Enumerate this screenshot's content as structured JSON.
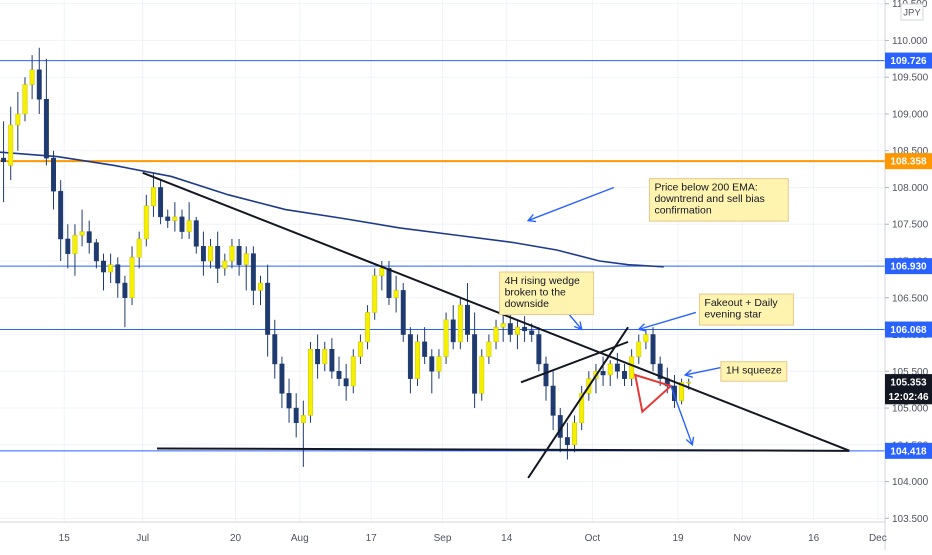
{
  "chart_data": {
    "type": "candlestick",
    "instrument_unit_label": "JPY",
    "y_axis": {
      "range": [
        103.45,
        110.55
      ],
      "ticks": [
        "103.500",
        "104.000",
        "104.500",
        "105.000",
        "105.500",
        "106.000",
        "106.500",
        "107.000",
        "107.500",
        "108.000",
        "108.500",
        "109.000",
        "109.500",
        "110.000",
        "110.500"
      ],
      "tick_values": [
        103.5,
        104.0,
        104.5,
        105.0,
        105.5,
        106.0,
        106.5,
        107.0,
        107.5,
        108.0,
        108.5,
        109.0,
        109.5,
        110.0,
        110.5
      ]
    },
    "x_axis": {
      "range": [
        0,
        124
      ],
      "ticks": [
        {
          "label": "15",
          "x": 9
        },
        {
          "label": "Jul",
          "x": 20
        },
        {
          "label": "20",
          "x": 33
        },
        {
          "label": "Aug",
          "x": 42
        },
        {
          "label": "17",
          "x": 52
        },
        {
          "label": "Sep",
          "x": 62
        },
        {
          "label": "14",
          "x": 71
        },
        {
          "label": "Oct",
          "x": 83
        },
        {
          "label": "19",
          "x": 95
        },
        {
          "label": "Nov",
          "x": 104
        },
        {
          "label": "16",
          "x": 114
        },
        {
          "label": "Dec",
          "x": 123
        }
      ]
    },
    "horizontal_levels": [
      {
        "value": 109.726,
        "label": "109.726",
        "color": "#2962ff",
        "width": 1
      },
      {
        "value": 108.358,
        "label": "108.358",
        "color": "#ff9800",
        "width": 2
      },
      {
        "value": 106.93,
        "label": "106.930",
        "color": "#2962ff",
        "width": 1
      },
      {
        "value": 106.068,
        "label": "106.068",
        "color": "#2962ff",
        "width": 1
      },
      {
        "value": 104.418,
        "label": "104.418",
        "color": "#2962ff",
        "width": 1
      }
    ],
    "current_price": {
      "value": 105.353,
      "label": "105.353",
      "color": "#131722"
    },
    "countdown": {
      "value": 105.16,
      "label": "12:02:46",
      "color": "#131722"
    },
    "candles": [
      [
        108.4,
        108.9,
        107.8,
        108.35
      ],
      [
        108.3,
        109.1,
        108.1,
        108.85
      ],
      [
        108.85,
        109.3,
        108.5,
        109.0
      ],
      [
        109.0,
        109.5,
        108.9,
        109.4
      ],
      [
        109.4,
        109.8,
        109.2,
        109.6
      ],
      [
        109.6,
        109.9,
        109.0,
        109.2
      ],
      [
        109.2,
        109.75,
        108.3,
        108.4
      ],
      [
        108.4,
        108.5,
        107.7,
        107.95
      ],
      [
        107.95,
        108.1,
        107.0,
        107.3
      ],
      [
        107.3,
        107.5,
        106.9,
        107.1
      ],
      [
        107.1,
        107.5,
        106.8,
        107.35
      ],
      [
        107.35,
        107.7,
        107.2,
        107.4
      ],
      [
        107.4,
        107.55,
        107.1,
        107.25
      ],
      [
        107.25,
        107.3,
        106.9,
        107.0
      ],
      [
        107.0,
        107.1,
        106.6,
        106.85
      ],
      [
        106.85,
        107.1,
        106.7,
        106.95
      ],
      [
        106.95,
        107.05,
        106.5,
        106.7
      ],
      [
        106.7,
        106.8,
        106.1,
        106.5
      ],
      [
        106.5,
        107.2,
        106.4,
        107.05
      ],
      [
        107.05,
        107.4,
        106.9,
        107.3
      ],
      [
        107.3,
        107.9,
        107.2,
        107.75
      ],
      [
        107.75,
        108.2,
        107.6,
        108.0
      ],
      [
        108.0,
        108.1,
        107.5,
        107.6
      ],
      [
        107.6,
        107.7,
        107.45,
        107.55
      ],
      [
        107.55,
        107.8,
        107.4,
        107.6
      ],
      [
        107.6,
        107.7,
        107.3,
        107.4
      ],
      [
        107.4,
        107.8,
        107.3,
        107.55
      ],
      [
        107.55,
        107.6,
        107.1,
        107.2
      ],
      [
        107.2,
        107.4,
        106.8,
        107.0
      ],
      [
        107.0,
        107.3,
        106.9,
        107.2
      ],
      [
        107.2,
        107.4,
        106.7,
        106.9
      ],
      [
        106.9,
        107.1,
        106.8,
        107.0
      ],
      [
        107.0,
        107.3,
        106.9,
        107.2
      ],
      [
        107.2,
        107.3,
        106.8,
        106.95
      ],
      [
        106.95,
        107.2,
        106.6,
        107.1
      ],
      [
        107.1,
        107.2,
        106.4,
        106.6
      ],
      [
        106.6,
        106.8,
        106.4,
        106.7
      ],
      [
        106.7,
        106.95,
        105.7,
        106.0
      ],
      [
        106.0,
        106.2,
        105.4,
        105.6
      ],
      [
        105.6,
        105.7,
        105.0,
        105.2
      ],
      [
        105.2,
        105.4,
        104.8,
        105.0
      ],
      [
        105.0,
        105.2,
        104.6,
        104.8
      ],
      [
        104.8,
        105.1,
        104.2,
        104.9
      ],
      [
        104.9,
        105.9,
        104.8,
        105.8
      ],
      [
        105.8,
        106.0,
        105.4,
        105.6
      ],
      [
        105.6,
        105.9,
        105.5,
        105.8
      ],
      [
        105.8,
        105.95,
        105.4,
        105.5
      ],
      [
        105.5,
        105.7,
        105.3,
        105.4
      ],
      [
        105.4,
        105.6,
        105.1,
        105.3
      ],
      [
        105.3,
        105.8,
        105.2,
        105.7
      ],
      [
        105.7,
        106.0,
        105.6,
        105.9
      ],
      [
        105.9,
        106.4,
        105.8,
        106.3
      ],
      [
        106.3,
        106.9,
        106.2,
        106.8
      ],
      [
        106.8,
        107.0,
        106.6,
        106.9
      ],
      [
        106.9,
        107.0,
        106.4,
        106.5
      ],
      [
        106.5,
        106.8,
        106.3,
        106.6
      ],
      [
        106.6,
        106.7,
        105.9,
        106.0
      ],
      [
        106.0,
        106.1,
        105.2,
        105.4
      ],
      [
        105.4,
        106.0,
        105.3,
        105.9
      ],
      [
        105.9,
        106.1,
        105.6,
        105.7
      ],
      [
        105.7,
        105.8,
        105.2,
        105.5
      ],
      [
        105.5,
        105.8,
        105.4,
        105.7
      ],
      [
        105.7,
        106.3,
        105.6,
        106.2
      ],
      [
        106.2,
        106.4,
        105.8,
        105.9
      ],
      [
        105.9,
        106.5,
        105.8,
        106.4
      ],
      [
        106.4,
        106.7,
        105.9,
        106.0
      ],
      [
        106.0,
        106.3,
        105.0,
        105.2
      ],
      [
        105.2,
        105.8,
        105.1,
        105.7
      ],
      [
        105.7,
        106.0,
        105.6,
        105.9
      ],
      [
        105.9,
        106.2,
        105.8,
        106.1
      ],
      [
        106.1,
        106.3,
        105.9,
        106.15
      ],
      [
        106.15,
        106.3,
        105.9,
        106.0
      ],
      [
        106.0,
        106.2,
        105.8,
        106.1
      ],
      [
        106.1,
        106.25,
        105.9,
        106.05
      ],
      [
        106.05,
        106.15,
        105.9,
        106.0
      ],
      [
        106.0,
        106.1,
        105.5,
        105.6
      ],
      [
        105.6,
        105.7,
        105.1,
        105.3
      ],
      [
        105.3,
        105.5,
        104.7,
        104.9
      ],
      [
        104.9,
        105.0,
        104.4,
        104.6
      ],
      [
        104.6,
        104.8,
        104.3,
        104.5
      ],
      [
        104.5,
        104.9,
        104.4,
        104.8
      ],
      [
        104.8,
        105.3,
        104.7,
        105.2
      ],
      [
        105.2,
        105.5,
        105.1,
        105.4
      ],
      [
        105.4,
        105.6,
        105.2,
        105.5
      ],
      [
        105.5,
        105.7,
        105.3,
        105.45
      ],
      [
        105.45,
        105.65,
        105.3,
        105.6
      ],
      [
        105.6,
        105.75,
        105.4,
        105.5
      ],
      [
        105.5,
        105.6,
        105.3,
        105.4
      ],
      [
        105.4,
        105.8,
        105.3,
        105.7
      ],
      [
        105.7,
        106.0,
        105.6,
        105.9
      ],
      [
        105.9,
        106.05,
        105.8,
        106.0
      ],
      [
        106.0,
        106.1,
        105.5,
        105.6
      ],
      [
        105.6,
        105.7,
        105.3,
        105.4
      ],
      [
        105.4,
        105.55,
        105.2,
        105.3
      ],
      [
        105.3,
        105.45,
        105.0,
        105.1
      ],
      [
        105.1,
        105.4,
        105.05,
        105.35
      ],
      [
        105.35,
        105.4,
        105.25,
        105.353
      ]
    ],
    "ema200": [
      [
        0,
        108.48
      ],
      [
        8,
        108.42
      ],
      [
        16,
        108.3
      ],
      [
        24,
        108.15
      ],
      [
        32,
        107.9
      ],
      [
        40,
        107.7
      ],
      [
        48,
        107.58
      ],
      [
        56,
        107.45
      ],
      [
        64,
        107.35
      ],
      [
        72,
        107.25
      ],
      [
        78,
        107.15
      ],
      [
        84,
        107.0
      ],
      [
        88,
        106.95
      ],
      [
        93,
        106.92
      ]
    ],
    "trendlines": [
      {
        "name": "downtrend-line",
        "points": [
          [
            20,
            108.2
          ],
          [
            119,
            104.42
          ]
        ],
        "color": "#131722"
      },
      {
        "name": "support-line",
        "points": [
          [
            22,
            104.45
          ],
          [
            119,
            104.418
          ]
        ],
        "color": "#131722"
      },
      {
        "name": "wedge-lower",
        "points": [
          [
            74,
            104.05
          ],
          [
            88,
            106.1
          ]
        ],
        "color": "#131722"
      },
      {
        "name": "wedge-upper",
        "points": [
          [
            73,
            105.35
          ],
          [
            88,
            105.9
          ]
        ],
        "color": "#131722"
      }
    ],
    "triangle": {
      "points": [
        [
          89,
          105.45
        ],
        [
          94,
          105.3
        ],
        [
          90,
          104.95
        ]
      ],
      "color": "#e53935"
    },
    "arrows": [
      {
        "name": "ema-arrow",
        "from": [
          86,
          108.0
        ],
        "to": [
          74,
          107.55
        ],
        "color": "#2962ff"
      },
      {
        "name": "wedge-arrow",
        "from": [
          79.5,
          106.3
        ],
        "to": [
          81.5,
          106.07
        ],
        "color": "#2962ff"
      },
      {
        "name": "fakeout-arrow",
        "from": [
          97.5,
          106.3
        ],
        "to": [
          89.5,
          106.07
        ],
        "color": "#2962ff"
      },
      {
        "name": "squeeze-arrow",
        "from": [
          101,
          105.55
        ],
        "to": [
          96,
          105.45
        ],
        "color": "#2962ff"
      },
      {
        "name": "breakdown-arrow",
        "from": [
          94,
          105.3
        ],
        "to": [
          97,
          104.5
        ],
        "color": "#2962ff"
      }
    ],
    "annotations": [
      {
        "name": "annotation-ema",
        "lines": [
          "Price below 200 EMA:",
          "downtrend and sell bias",
          "confirmation"
        ],
        "anchor": [
          91,
          108.12
        ]
      },
      {
        "name": "annotation-wedge",
        "lines": [
          "4H rising wedge",
          "broken to the",
          "downside"
        ],
        "anchor": [
          70,
          106.85
        ]
      },
      {
        "name": "annotation-fakeout",
        "lines": [
          "Fakeout + Daily",
          "evening star"
        ],
        "anchor": [
          98,
          106.55
        ]
      },
      {
        "name": "annotation-squeeze",
        "lines": [
          "1H squeeze"
        ],
        "anchor": [
          101,
          105.63
        ]
      }
    ],
    "colors": {
      "up": "#f5f000",
      "down": "#1e3a6e",
      "ema": "#1e3a8a",
      "annotation_bg": "#fff3b0",
      "annotation_border": "#e8c88a"
    }
  }
}
